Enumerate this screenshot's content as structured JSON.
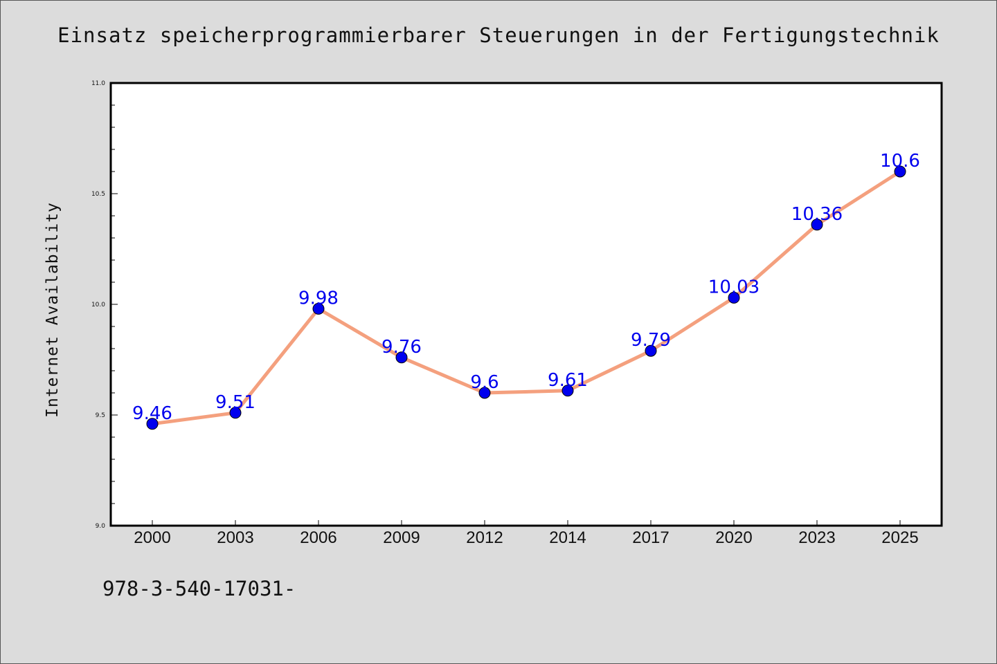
{
  "colors": {
    "background": "#dcdcdc",
    "plot_background": "#ffffff",
    "line": "#f4a07e",
    "marker": "#0000ee",
    "data_label": "#0000ee"
  },
  "chart_data": {
    "type": "line",
    "title": "Einsatz speicherprogrammierbarer Steuerungen in der Fertigungstechnik",
    "xlabel": "",
    "ylabel": "Internet Availability",
    "categories": [
      "2000",
      "2003",
      "2006",
      "2009",
      "2012",
      "2014",
      "2017",
      "2020",
      "2023",
      "2025"
    ],
    "series": [
      {
        "values": [
          9.46,
          9.51,
          9.98,
          9.76,
          9.6,
          9.61,
          9.79,
          10.03,
          10.36,
          10.6
        ]
      }
    ],
    "data_labels": [
      "9.46",
      "9.51",
      "9.98",
      "9.76",
      "9.6",
      "9.61",
      "9.79",
      "10.03",
      "10.36",
      "10.6"
    ],
    "ylim": [
      9.0,
      11.0
    ],
    "yticks": [
      "9.0",
      "9.5",
      "10.0",
      "10.5",
      "11.0"
    ],
    "grid": false,
    "legend": "none"
  },
  "footnote": "978-3-540-17031-"
}
